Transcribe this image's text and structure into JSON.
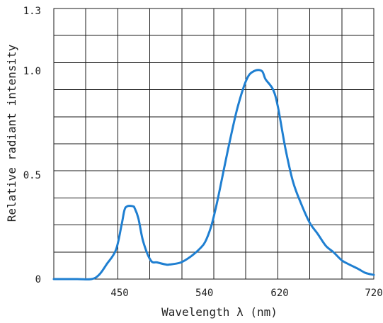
{
  "chart_data": {
    "type": "line",
    "xlabel": "Wavelength  λ  (nm)",
    "ylabel": "Relative radiant intensity",
    "xlim": [
      380,
      720
    ],
    "ylim": [
      0,
      1.3
    ],
    "x_ticks": [
      {
        "value": 450,
        "label": "450"
      },
      {
        "value": 540,
        "label": "540"
      },
      {
        "value": 620,
        "label": "620"
      },
      {
        "value": 720,
        "label": "720"
      }
    ],
    "y_ticks": [
      {
        "value": 0,
        "label": "0"
      },
      {
        "value": 0.5,
        "label": "0.5"
      },
      {
        "value": 1.0,
        "label": "1.0"
      },
      {
        "value": 1.3,
        "label": "1.3"
      }
    ],
    "grid": true,
    "grid_x_divisions": 10,
    "grid_y_divisions": 10,
    "series": [
      {
        "color": "#1f7fd1",
        "x": [
          380,
          405,
          420,
          428,
          436,
          446,
          452,
          455,
          458,
          464,
          466,
          470,
          475,
          483,
          490,
          499,
          503,
          515,
          526,
          536,
          541,
          547,
          551,
          555,
          565,
          575,
          585,
          593,
          601,
          605,
          613,
          618,
          626,
          634,
          643,
          652,
          660,
          669,
          677,
          686,
          694,
          703,
          711,
          720
        ],
        "y": [
          0,
          0,
          0,
          0.02,
          0.07,
          0.14,
          0.26,
          0.33,
          0.35,
          0.35,
          0.34,
          0.29,
          0.18,
          0.09,
          0.08,
          0.07,
          0.07,
          0.08,
          0.11,
          0.15,
          0.18,
          0.25,
          0.32,
          0.4,
          0.62,
          0.82,
          0.96,
          1.0,
          1.0,
          0.96,
          0.91,
          0.83,
          0.63,
          0.47,
          0.36,
          0.27,
          0.22,
          0.16,
          0.13,
          0.09,
          0.07,
          0.05,
          0.03,
          0.02
        ]
      }
    ]
  }
}
